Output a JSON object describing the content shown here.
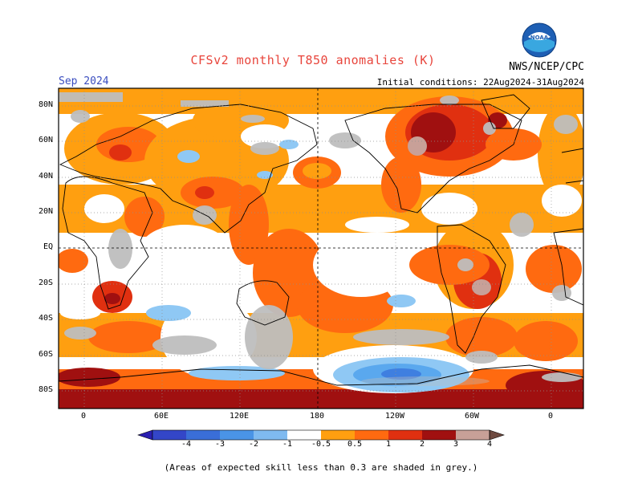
{
  "header": {
    "title": "CFSv2 monthly T850 anomalies (K)",
    "month": "Sep 2024",
    "initial_conditions": "Initial conditions: 22Aug2024-31Aug2024",
    "organization": "NWS/NCEP/CPC",
    "logo_text": "NOAA"
  },
  "map": {
    "lat_labels": [
      "80N",
      "60N",
      "40N",
      "20N",
      "EQ",
      "20S",
      "40S",
      "60S",
      "80S"
    ],
    "lon_labels": [
      "0",
      "60E",
      "120E",
      "180",
      "120W",
      "60W",
      "0"
    ],
    "grey_color": "#bebebe",
    "colors": {
      "n4": "#2a1fb0",
      "n3": "#3b3fd0",
      "n2": "#3f7fe0",
      "n1": "#5aa8ee",
      "n05": "#8fc8f4",
      "p05": "#ff9f10",
      "p1": "#ff6a10",
      "p2": "#e03010",
      "p3": "#a01010",
      "p4": "#c8a098"
    }
  },
  "colorbar": {
    "labels": [
      "-4",
      "-3",
      "-2",
      "-1",
      "-0.5",
      "0.5",
      "1",
      "2",
      "3",
      "4"
    ],
    "colors": [
      "#2a1fb0",
      "#3346c8",
      "#3a6ed8",
      "#4a94e6",
      "#7fbaf0",
      "#ffffff",
      "#ff9f10",
      "#ff6a10",
      "#e03010",
      "#a01010",
      "#c8a098",
      "#6e4a40"
    ]
  },
  "footnote": "(Areas of expected skill less than 0.3 are shaded in grey.)"
}
